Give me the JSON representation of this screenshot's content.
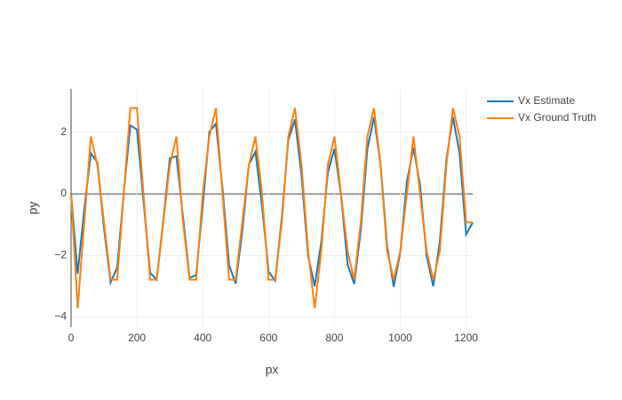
{
  "chart_data": {
    "type": "line",
    "x": [
      0,
      20,
      40,
      60,
      80,
      100,
      120,
      140,
      160,
      180,
      200,
      220,
      240,
      260,
      280,
      300,
      320,
      340,
      360,
      380,
      400,
      420,
      440,
      460,
      480,
      500,
      520,
      540,
      560,
      580,
      600,
      620,
      640,
      660,
      680,
      700,
      720,
      740,
      760,
      780,
      800,
      820,
      840,
      860,
      880,
      900,
      920,
      940,
      960,
      980,
      1000,
      1020,
      1040,
      1060,
      1080,
      1100,
      1120,
      1140,
      1160,
      1180,
      1200,
      1220
    ],
    "series": [
      {
        "name": "Vx Estimate",
        "color": "#1f77b4",
        "values": [
          0.0,
          -2.6,
          -0.51,
          1.32,
          1.02,
          -1.11,
          -2.88,
          -2.4,
          0.04,
          2.22,
          2.09,
          -0.23,
          -2.56,
          -2.79,
          -0.87,
          1.16,
          1.22,
          -0.75,
          -2.73,
          -2.64,
          -0.37,
          2.01,
          2.28,
          0.18,
          -2.32,
          -2.92,
          -1.22,
          0.95,
          1.37,
          -0.4,
          -2.53,
          -2.82,
          -0.78,
          1.75,
          2.42,
          0.59,
          -2.02,
          -3.0,
          -1.57,
          0.69,
          1.46,
          -0.04,
          -2.29,
          -2.93,
          -1.18,
          1.45,
          2.49,
          0.97,
          -1.69,
          -3.02,
          -1.9,
          0.4,
          1.5,
          0.29,
          -2.01,
          -3.0,
          -1.56,
          1.1,
          2.5,
          1.32,
          -1.32,
          -0.93
        ]
      },
      {
        "name": "Vx Ground Truth",
        "color": "#ff7f0e",
        "values": [
          0,
          -3.72,
          -0.93,
          1.86,
          0.93,
          -0.93,
          -2.79,
          -2.79,
          0,
          2.79,
          2.79,
          0,
          -2.79,
          -2.79,
          -0.93,
          0.93,
          1.86,
          -0.93,
          -2.79,
          -2.79,
          0,
          1.86,
          2.79,
          0,
          -2.79,
          -2.79,
          -0.93,
          0.93,
          1.86,
          0,
          -2.79,
          -2.79,
          -0.93,
          1.86,
          2.79,
          0.93,
          -1.86,
          -3.72,
          -1.86,
          0.93,
          1.86,
          0,
          -1.86,
          -2.79,
          -0.93,
          1.86,
          2.79,
          0.93,
          -1.86,
          -2.79,
          -1.86,
          0,
          1.86,
          0,
          -1.86,
          -2.79,
          -1.86,
          0.93,
          2.79,
          1.86,
          -0.93,
          -0.93
        ]
      }
    ],
    "x_label": "px",
    "y_label": "py",
    "xlim": [
      0,
      1220
    ],
    "ylim": [
      -4.33,
      3.41
    ],
    "xticks": [
      0,
      200,
      400,
      600,
      800,
      1000,
      1200
    ],
    "yticks": [
      {
        "value": -4,
        "label": "−4"
      },
      {
        "value": -2,
        "label": "−2"
      },
      0,
      2
    ],
    "grid": true,
    "legend": "right"
  }
}
